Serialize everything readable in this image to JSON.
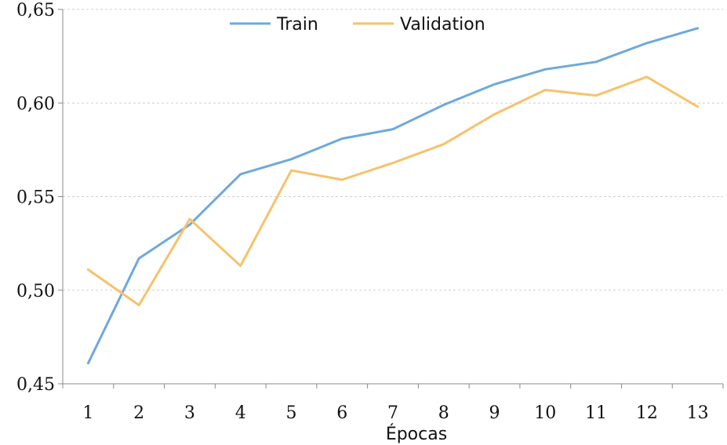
{
  "chart_data": {
    "type": "line",
    "xlabel": "Épocas",
    "ylabel": "",
    "categories": [
      "1",
      "2",
      "3",
      "4",
      "5",
      "6",
      "7",
      "8",
      "9",
      "10",
      "11",
      "12",
      "13"
    ],
    "ylim": [
      0.45,
      0.65
    ],
    "yticks": [
      0.45,
      0.5,
      0.55,
      0.6,
      0.65
    ],
    "ytick_labels": [
      "0,45",
      "0,50",
      "0,55",
      "0,60",
      "0,65"
    ],
    "grid": true,
    "legend_position": "top",
    "series": [
      {
        "name": "Train",
        "color": "#6fa8dc",
        "values": [
          0.461,
          0.517,
          0.535,
          0.562,
          0.57,
          0.581,
          0.586,
          0.599,
          0.61,
          0.618,
          0.622,
          0.632,
          0.64
        ]
      },
      {
        "name": "Validation",
        "color": "#f6c26b",
        "values": [
          0.511,
          0.492,
          0.538,
          0.513,
          0.564,
          0.559,
          0.568,
          0.578,
          0.594,
          0.607,
          0.604,
          0.614,
          0.598
        ]
      }
    ]
  }
}
